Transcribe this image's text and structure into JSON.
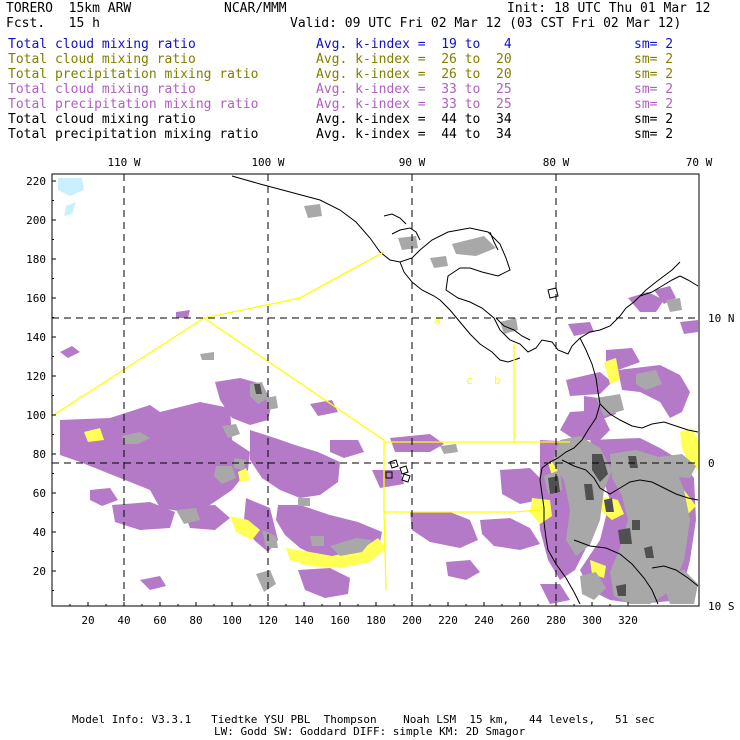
{
  "header": {
    "model": "TORERO  15km ARW",
    "center": "NCAR/MMM",
    "init": "Init: 18 UTC Thu 01 Mar 12",
    "fcst": "Fcst.   15 h",
    "valid": "Valid: 09 UTC Fri 02 Mar 12 (03 CST Fri 02 Mar 12)"
  },
  "legend": [
    {
      "field": "Total cloud mixing ratio",
      "kindex": "Avg. k-index =  19 to   4",
      "sm": "sm= 2",
      "color": "#1010c8"
    },
    {
      "field": "Total cloud mixing ratio",
      "kindex": "Avg. k-index =  26 to  20",
      "sm": "sm= 2",
      "color": "#808000"
    },
    {
      "field": "Total precipitation mixing ratio",
      "kindex": "Avg. k-index =  26 to  20",
      "sm": "sm= 2",
      "color": "#808000"
    },
    {
      "field": "Total cloud mixing ratio",
      "kindex": "Avg. k-index =  33 to  25",
      "sm": "sm= 2",
      "color": "#b060c0"
    },
    {
      "field": "Total precipitation mixing ratio",
      "kindex": "Avg. k-index =  33 to  25",
      "sm": "sm= 2",
      "color": "#b060c0"
    },
    {
      "field": "Total cloud mixing ratio",
      "kindex": "Avg. k-index =  44 to  34",
      "sm": "sm= 2",
      "color": "#000000"
    },
    {
      "field": "Total precipitation mixing ratio",
      "kindex": "Avg. k-index =  44 to  34",
      "sm": "sm= 2",
      "color": "#000000"
    }
  ],
  "axes": {
    "top_lon": [
      "110 W",
      "100 W",
      "90 W",
      "80 W",
      "70 W"
    ],
    "right_lat": [
      "10 N",
      "0",
      "10 S"
    ],
    "left_y": [
      "220",
      "200",
      "180",
      "160",
      "140",
      "120",
      "100",
      "80",
      "60",
      "40",
      "20"
    ],
    "bottom_x": [
      "20",
      "40",
      "60",
      "80",
      "100",
      "120",
      "140",
      "160",
      "180",
      "200",
      "220",
      "240",
      "260",
      "280",
      "300",
      "320"
    ]
  },
  "footer": {
    "line1": "Model Info: V3.3.1   Tiedtke YSU PBL  Thompson    Noah LSM  15 km,   44 levels,   51 sec",
    "line2": "LW: Godd SW: Goddard DIFF: simple KM: 2D Smagor"
  },
  "colors": {
    "purple": "#b57ac7",
    "gray": "#a8a8a8",
    "dark": "#505050",
    "yellow": "#ffff55",
    "boundary": "#ffff00",
    "cyan": "#c8f0ff"
  }
}
